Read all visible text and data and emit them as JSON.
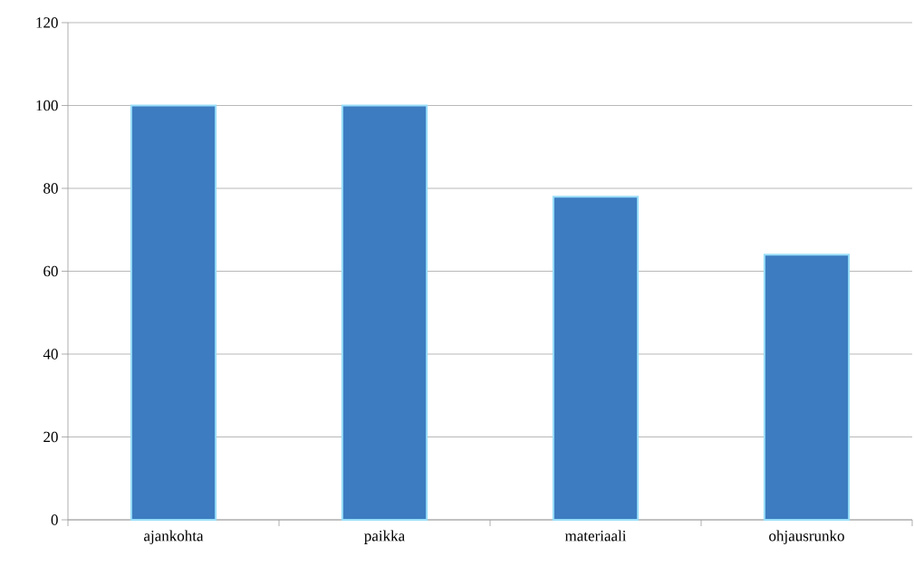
{
  "chart_data": {
    "type": "bar",
    "categories": [
      "ajankohta",
      "paikka",
      "materiaali",
      "ohjausrunko"
    ],
    "values": [
      100,
      100,
      78,
      64
    ],
    "color": "#3d7cc0",
    "ylim": [
      0,
      120
    ],
    "yticks": [
      0,
      20,
      40,
      60,
      80,
      100,
      120
    ],
    "grid": "y"
  }
}
